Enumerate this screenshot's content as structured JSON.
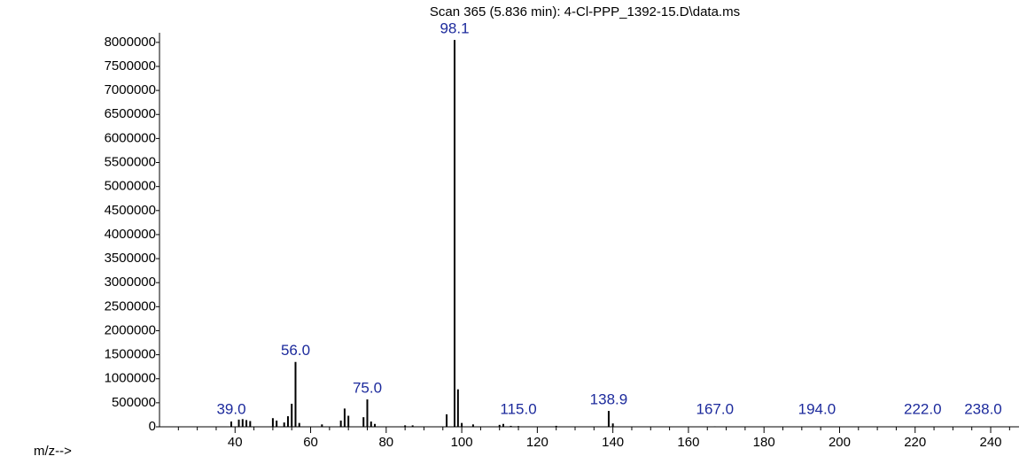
{
  "chart_data": {
    "type": "stick",
    "title": "Scan 365 (5.836 min): 4-Cl-PPP_1392-15.D\\data.ms",
    "x_label": "m/z-->",
    "color": "#000000",
    "label_color": "#1c2a9c",
    "x": [
      39,
      41,
      42,
      43,
      44,
      50,
      51,
      53,
      54,
      55,
      56,
      57,
      63,
      68,
      69,
      70,
      74,
      75,
      76,
      77,
      85,
      87,
      96,
      98.1,
      99,
      100,
      103,
      110,
      111,
      113,
      115,
      125,
      138.9,
      140,
      167,
      194,
      222,
      238
    ],
    "values": [
      110000,
      150000,
      160000,
      140000,
      120000,
      180000,
      130000,
      90000,
      220000,
      480000,
      1350000,
      80000,
      50000,
      130000,
      380000,
      230000,
      200000,
      570000,
      110000,
      60000,
      30000,
      30000,
      260000,
      8050000,
      780000,
      80000,
      50000,
      40000,
      60000,
      20000,
      15000,
      20000,
      330000,
      70000,
      10000,
      8000,
      6000,
      5000
    ],
    "point_labels": [
      "39.0",
      null,
      null,
      null,
      null,
      null,
      null,
      null,
      null,
      null,
      "56.0",
      null,
      null,
      null,
      null,
      null,
      null,
      "75.0",
      null,
      null,
      null,
      null,
      null,
      "98.1",
      null,
      null,
      null,
      null,
      null,
      null,
      "115.0",
      null,
      "138.9",
      null,
      "167.0",
      "194.0",
      "222.0",
      "238.0"
    ],
    "xlim": [
      20,
      247.5
    ],
    "ylim": [
      0,
      8200000
    ],
    "xticks": [
      40,
      60,
      80,
      100,
      120,
      140,
      160,
      180,
      200,
      220,
      240
    ],
    "xminorticks": [
      25,
      30,
      35,
      45,
      50,
      55,
      65,
      70,
      75,
      85,
      90,
      95,
      105,
      110,
      115,
      125,
      130,
      135,
      145,
      150,
      155,
      165,
      170,
      175,
      185,
      190,
      195,
      205,
      210,
      215,
      225,
      230,
      235,
      245
    ],
    "yticks": [
      0,
      500000,
      1000000,
      1500000,
      2000000,
      2500000,
      3000000,
      3500000,
      4000000,
      4500000,
      5000000,
      5500000,
      6000000,
      6500000,
      7000000,
      7500000,
      8000000
    ]
  }
}
